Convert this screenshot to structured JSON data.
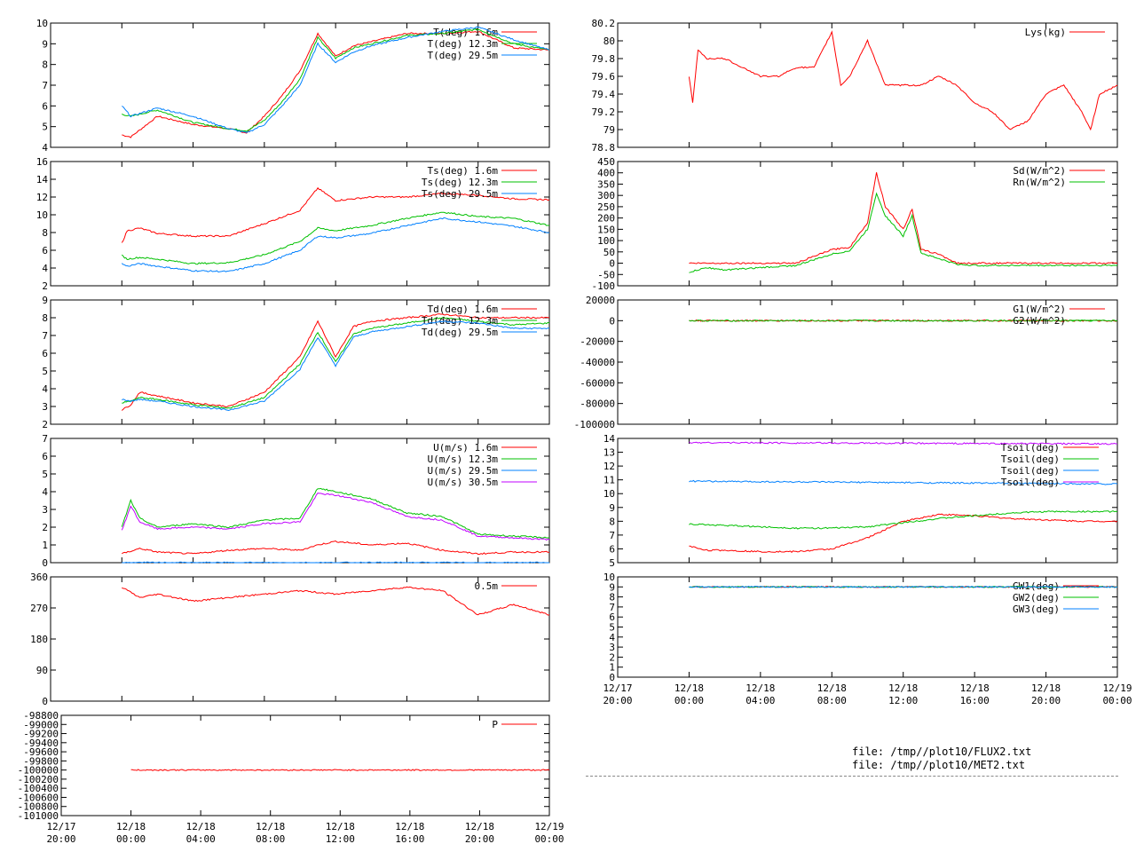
{
  "time_axis": {
    "ticks": [
      {
        "date": "12/17",
        "time": "20:00"
      },
      {
        "date": "12/18",
        "time": "00:00"
      },
      {
        "date": "12/18",
        "time": "04:00"
      },
      {
        "date": "12/18",
        "time": "08:00"
      },
      {
        "date": "12/18",
        "time": "12:00"
      },
      {
        "date": "12/18",
        "time": "16:00"
      },
      {
        "date": "12/18",
        "time": "20:00"
      },
      {
        "date": "12/19",
        "time": "00:00"
      }
    ],
    "range_hours": [
      -4,
      24
    ]
  },
  "colors": {
    "red": "#ff0000",
    "green": "#00c000",
    "blue": "#0080ff",
    "purple": "#c000ff",
    "grid": "#000000"
  },
  "footer": {
    "files": [
      "file: /tmp//plot10/FLUX2.txt",
      "file: /tmp//plot10/MET2.txt"
    ]
  },
  "chart_data": [
    {
      "id": "air-temperature",
      "type": "line",
      "ylim": [
        4,
        10
      ],
      "yticks": [
        "4",
        "5",
        "6",
        "7",
        "8",
        "9",
        "10"
      ],
      "series": [
        {
          "name": "T(deg)  1.6m",
          "color": "#ff0000",
          "hours": [
            0,
            0.5,
            2,
            4,
            6,
            7,
            8,
            9,
            10,
            11,
            12,
            13,
            14,
            16,
            18,
            20,
            22,
            24
          ],
          "values": [
            4.6,
            4.5,
            5.5,
            5.1,
            4.9,
            4.7,
            5.5,
            6.5,
            7.7,
            9.5,
            8.4,
            8.9,
            9.1,
            9.5,
            9.5,
            9.6,
            8.8,
            8.7
          ]
        },
        {
          "name": "T(deg) 12.3m",
          "color": "#00c000",
          "hours": [
            0,
            0.5,
            2,
            4,
            6,
            7,
            8,
            9,
            10,
            11,
            12,
            13,
            14,
            16,
            18,
            20,
            22,
            24
          ],
          "values": [
            5.6,
            5.5,
            5.8,
            5.2,
            4.9,
            4.8,
            5.3,
            6.2,
            7.3,
            9.3,
            8.3,
            8.8,
            9.0,
            9.4,
            9.5,
            9.7,
            9.0,
            8.7
          ]
        },
        {
          "name": "T(deg) 29.5m",
          "color": "#0080ff",
          "hours": [
            0,
            0.5,
            2,
            4,
            6,
            7,
            8,
            9,
            10,
            11,
            12,
            13,
            14,
            16,
            18,
            20,
            22,
            24
          ],
          "values": [
            6.0,
            5.5,
            5.9,
            5.5,
            4.9,
            4.7,
            5.1,
            6.0,
            7.0,
            9.0,
            8.1,
            8.6,
            8.9,
            9.3,
            9.6,
            9.8,
            9.2,
            8.7
          ]
        }
      ]
    },
    {
      "id": "surface-temperature",
      "type": "line",
      "ylim": [
        2,
        16
      ],
      "yticks": [
        "2",
        "4",
        "6",
        "8",
        "10",
        "12",
        "14",
        "16"
      ],
      "series": [
        {
          "name": "Ts(deg)  1.6m",
          "color": "#ff0000",
          "hours": [
            0,
            0.3,
            1,
            2,
            4,
            6,
            8,
            10,
            11,
            12,
            14,
            16,
            18,
            20,
            22,
            24
          ],
          "values": [
            6.8,
            8.2,
            8.5,
            7.9,
            7.6,
            7.6,
            9.0,
            10.5,
            13.0,
            11.6,
            12.0,
            12.0,
            12.4,
            12.2,
            11.8,
            11.7
          ]
        },
        {
          "name": "Ts(deg) 12.3m",
          "color": "#00c000",
          "hours": [
            0,
            0.3,
            1,
            2,
            4,
            6,
            8,
            10,
            11,
            12,
            14,
            16,
            18,
            20,
            22,
            24
          ],
          "values": [
            5.4,
            5.0,
            5.2,
            5.0,
            4.5,
            4.6,
            5.5,
            7.0,
            8.5,
            8.2,
            8.8,
            9.6,
            10.3,
            9.8,
            9.6,
            8.8
          ]
        },
        {
          "name": "Ts(deg) 29.5m",
          "color": "#0080ff",
          "hours": [
            0,
            0.3,
            1,
            2,
            4,
            6,
            8,
            10,
            11,
            12,
            14,
            16,
            18,
            20,
            22,
            24
          ],
          "values": [
            4.5,
            4.2,
            4.5,
            4.2,
            3.7,
            3.6,
            4.5,
            6.0,
            7.6,
            7.4,
            7.9,
            8.8,
            9.6,
            9.2,
            8.7,
            8.0
          ]
        }
      ]
    },
    {
      "id": "dewpoint",
      "type": "line",
      "ylim": [
        2,
        9
      ],
      "yticks": [
        "2",
        "3",
        "4",
        "5",
        "6",
        "7",
        "8",
        "9"
      ],
      "series": [
        {
          "name": "Td(deg)  1.6m",
          "color": "#ff0000",
          "hours": [
            0,
            0.5,
            1,
            2,
            4,
            6,
            8,
            10,
            11,
            12,
            13,
            14,
            16,
            18,
            20,
            22,
            24
          ],
          "values": [
            2.8,
            3.1,
            3.8,
            3.6,
            3.2,
            3.0,
            3.8,
            5.8,
            7.8,
            5.8,
            7.5,
            7.8,
            8.0,
            8.2,
            8.0,
            8.0,
            8.0
          ]
        },
        {
          "name": "Td(deg) 12.3m",
          "color": "#00c000",
          "hours": [
            0,
            0.5,
            1,
            2,
            4,
            6,
            8,
            10,
            11,
            12,
            13,
            14,
            16,
            18,
            20,
            22,
            24
          ],
          "values": [
            3.2,
            3.3,
            3.5,
            3.4,
            3.1,
            2.9,
            3.5,
            5.4,
            7.2,
            5.5,
            7.1,
            7.4,
            7.7,
            8.0,
            7.8,
            7.6,
            7.7
          ]
        },
        {
          "name": "Td(deg) 29.5m",
          "color": "#0080ff",
          "hours": [
            0,
            0.5,
            1,
            2,
            4,
            6,
            8,
            10,
            11,
            12,
            13,
            14,
            16,
            18,
            20,
            22,
            24
          ],
          "values": [
            3.4,
            3.3,
            3.4,
            3.3,
            3.0,
            2.8,
            3.3,
            5.1,
            6.9,
            5.3,
            6.9,
            7.2,
            7.5,
            7.8,
            7.7,
            7.4,
            7.4
          ]
        }
      ]
    },
    {
      "id": "wind-speed",
      "type": "line",
      "ylim": [
        0,
        7
      ],
      "yticks": [
        "0",
        "1",
        "2",
        "3",
        "4",
        "5",
        "6",
        "7"
      ],
      "series": [
        {
          "name": "U(m/s)  1.6m",
          "color": "#ff0000",
          "hours": [
            0,
            1,
            2,
            4,
            6,
            8,
            10,
            11,
            12,
            14,
            16,
            18,
            20,
            22,
            24
          ],
          "values": [
            0.5,
            0.8,
            0.6,
            0.5,
            0.7,
            0.8,
            0.7,
            1.0,
            1.2,
            1.0,
            1.1,
            0.7,
            0.5,
            0.6,
            0.6
          ]
        },
        {
          "name": "U(m/s) 12.3m",
          "color": "#00c000",
          "hours": [
            0,
            0.5,
            1,
            2,
            4,
            6,
            8,
            10,
            11,
            12,
            14,
            16,
            18,
            20,
            22,
            24
          ],
          "values": [
            2.0,
            3.5,
            2.5,
            2.0,
            2.2,
            2.0,
            2.4,
            2.5,
            4.2,
            4.0,
            3.6,
            2.8,
            2.6,
            1.6,
            1.5,
            1.4
          ]
        },
        {
          "name": "U(m/s) 29.5m",
          "color": "#0080ff",
          "hours": [
            0,
            24
          ],
          "values": [
            0,
            0
          ]
        },
        {
          "name": "U(m/s) 30.5m",
          "color": "#c000ff",
          "hours": [
            0,
            0.5,
            1,
            2,
            4,
            6,
            8,
            10,
            11,
            12,
            14,
            16,
            18,
            20,
            22,
            24
          ],
          "values": [
            1.8,
            3.2,
            2.3,
            1.9,
            2.0,
            1.9,
            2.2,
            2.3,
            3.9,
            3.8,
            3.4,
            2.6,
            2.4,
            1.5,
            1.4,
            1.3
          ]
        }
      ]
    },
    {
      "id": "wind-direction",
      "type": "line",
      "ylim": [
        0,
        360
      ],
      "yticks": [
        "0",
        "90",
        "180",
        "270",
        "360"
      ],
      "series": [
        {
          "name": "0.5m",
          "color": "#ff0000",
          "hours": [
            0,
            1,
            2,
            4,
            6,
            8,
            10,
            12,
            14,
            16,
            18,
            20,
            22,
            24
          ],
          "values": [
            330,
            300,
            310,
            290,
            300,
            310,
            320,
            310,
            320,
            330,
            320,
            250,
            280,
            250
          ]
        }
      ]
    },
    {
      "id": "pressure",
      "type": "line",
      "ylim": [
        -101000,
        -98800
      ],
      "yticks": [
        "-101000",
        "-100800",
        "-100600",
        "-100400",
        "-100200",
        "-100000",
        "-99800",
        "-99600",
        "-99400",
        "-99200",
        "-99000",
        "-98800"
      ],
      "series": [
        {
          "name": "P",
          "color": "#ff0000",
          "hours": [
            0,
            24
          ],
          "values": [
            -100000,
            -100000
          ]
        }
      ]
    },
    {
      "id": "lysimeter",
      "type": "line",
      "ylim": [
        78.8,
        80.2
      ],
      "yticks": [
        "78.8",
        "79",
        "79.2",
        "79.4",
        "79.6",
        "79.8",
        "80",
        "80.2"
      ],
      "series": [
        {
          "name": "Lys(kg)",
          "color": "#ff0000",
          "hours": [
            0,
            0.2,
            0.5,
            1,
            2,
            3,
            4,
            5,
            6,
            7,
            8,
            8.5,
            9,
            10,
            11,
            12,
            13,
            14,
            15,
            16,
            17,
            18,
            19,
            20,
            21,
            22,
            22.5,
            23,
            24
          ],
          "values": [
            79.6,
            79.3,
            79.9,
            79.8,
            79.8,
            79.7,
            79.6,
            79.6,
            79.7,
            79.7,
            80.1,
            79.5,
            79.6,
            80.0,
            79.5,
            79.5,
            79.5,
            79.6,
            79.5,
            79.3,
            79.2,
            79.0,
            79.1,
            79.4,
            79.5,
            79.2,
            79.0,
            79.4,
            79.5
          ]
        }
      ]
    },
    {
      "id": "radiation",
      "type": "line",
      "ylim": [
        -100,
        450
      ],
      "yticks": [
        "-100",
        "-50",
        "0",
        "50",
        "100",
        "150",
        "200",
        "250",
        "300",
        "350",
        "400",
        "450"
      ],
      "series": [
        {
          "name": "Sd(W/m^2)",
          "color": "#ff0000",
          "hours": [
            0,
            1,
            2,
            3,
            4,
            5,
            6,
            7,
            8,
            9,
            10,
            10.5,
            11,
            12,
            12.5,
            13,
            14,
            15,
            16,
            18,
            20,
            22,
            24
          ],
          "values": [
            0,
            0,
            0,
            0,
            0,
            0,
            0,
            30,
            60,
            70,
            180,
            400,
            250,
            150,
            240,
            60,
            40,
            0,
            0,
            0,
            0,
            0,
            0
          ]
        },
        {
          "name": "Rn(W/m^2)",
          "color": "#00c000",
          "hours": [
            0,
            1,
            2,
            3,
            4,
            5,
            6,
            7,
            8,
            9,
            10,
            10.5,
            11,
            12,
            12.5,
            13,
            14,
            15,
            16,
            18,
            20,
            22,
            24
          ],
          "values": [
            -40,
            -20,
            -30,
            -25,
            -20,
            -15,
            -10,
            15,
            40,
            55,
            150,
            310,
            210,
            120,
            210,
            45,
            20,
            -5,
            -10,
            -10,
            -10,
            -10,
            -10
          ]
        }
      ]
    },
    {
      "id": "soil-heat-flux",
      "type": "line",
      "ylim": [
        -100000,
        20000
      ],
      "yticks": [
        "-100000",
        "-80000",
        "-60000",
        "-40000",
        "-20000",
        "0",
        "20000"
      ],
      "series": [
        {
          "name": "G1(W/m^2)",
          "color": "#ff0000",
          "hours": [
            0,
            24
          ],
          "values": [
            0,
            0
          ]
        },
        {
          "name": "G2(W/m^2)",
          "color": "#00c000",
          "hours": [
            0,
            24
          ],
          "values": [
            0,
            0
          ]
        }
      ]
    },
    {
      "id": "soil-temperature",
      "type": "line",
      "ylim": [
        5,
        14
      ],
      "yticks": [
        "5",
        "6",
        "7",
        "8",
        "9",
        "10",
        "11",
        "12",
        "13",
        "14"
      ],
      "series": [
        {
          "name": "Tsoil(deg)",
          "color": "#ff0000",
          "hours": [
            0,
            1,
            2,
            4,
            6,
            8,
            10,
            12,
            14,
            16,
            18,
            20,
            22,
            24
          ],
          "values": [
            6.2,
            5.9,
            5.9,
            5.8,
            5.8,
            6.0,
            6.8,
            8.0,
            8.5,
            8.4,
            8.2,
            8.1,
            8.0,
            8.0
          ]
        },
        {
          "name": "Tsoil(deg)",
          "color": "#00c000",
          "hours": [
            0,
            2,
            4,
            6,
            8,
            10,
            12,
            14,
            16,
            18,
            20,
            22,
            24
          ],
          "values": [
            7.8,
            7.7,
            7.6,
            7.5,
            7.5,
            7.6,
            7.9,
            8.2,
            8.4,
            8.6,
            8.7,
            8.7,
            8.7
          ]
        },
        {
          "name": "Tsoil(deg)",
          "color": "#0080ff",
          "hours": [
            0,
            24
          ],
          "values": [
            10.9,
            10.7
          ]
        },
        {
          "name": "Tsoil(deg)",
          "color": "#c000ff",
          "hours": [
            0,
            24
          ],
          "values": [
            13.7,
            13.6
          ]
        }
      ]
    },
    {
      "id": "groundwater",
      "type": "line",
      "ylim": [
        0,
        10
      ],
      "yticks": [
        "0",
        "1",
        "2",
        "3",
        "4",
        "5",
        "6",
        "7",
        "8",
        "9",
        "10"
      ],
      "series": [
        {
          "name": "GW1(deg)",
          "color": "#ff0000",
          "hours": [
            0,
            24
          ],
          "values": [
            9,
            9
          ]
        },
        {
          "name": "GW2(deg)",
          "color": "#00c000",
          "hours": [
            0,
            24
          ],
          "values": [
            9,
            9
          ]
        },
        {
          "name": "GW3(deg)",
          "color": "#0080ff",
          "hours": [
            0,
            24
          ],
          "values": [
            9,
            9
          ]
        }
      ]
    }
  ]
}
